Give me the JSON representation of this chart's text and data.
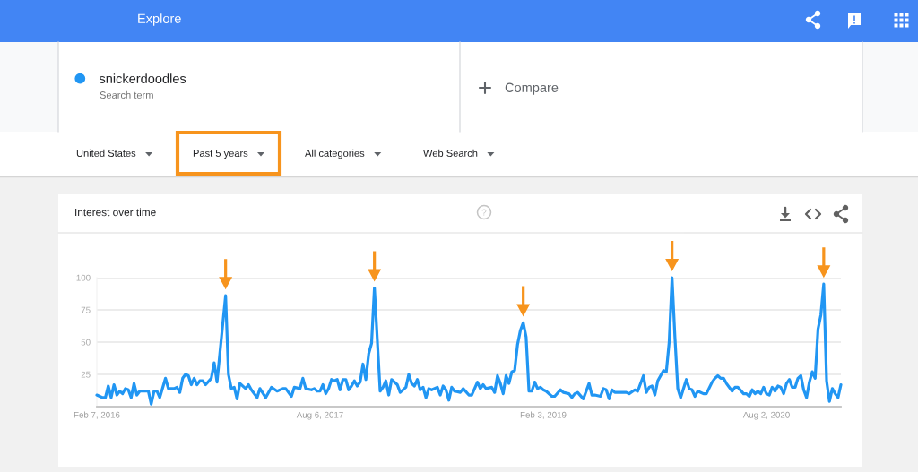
{
  "chart_data": {
    "type": "line",
    "title": "Interest over time",
    "series": [
      {
        "name": "snickerdoodles",
        "color": "#2196f3",
        "x": [
          "2016-02-07",
          "2016-02-14",
          "2016-02-21",
          "2016-02-28",
          "2016-03-06",
          "2016-03-13",
          "2016-03-20",
          "2016-03-27",
          "2016-04-03",
          "2016-04-10",
          "2016-04-17",
          "2016-04-24",
          "2016-05-01",
          "2016-05-08",
          "2016-05-15",
          "2016-05-22",
          "2016-06-12",
          "2016-06-19",
          "2016-06-26",
          "2016-07-03",
          "2016-07-10",
          "2016-07-24",
          "2016-07-31",
          "2016-08-14",
          "2016-08-21",
          "2016-08-28",
          "2016-09-04",
          "2016-09-11",
          "2016-09-18",
          "2016-09-25",
          "2016-10-02",
          "2016-10-09",
          "2016-10-16",
          "2016-10-23",
          "2016-10-30",
          "2016-11-13",
          "2016-11-20",
          "2016-11-27",
          "2016-12-11",
          "2016-12-18",
          "2016-12-25",
          "2017-01-01",
          "2017-01-08",
          "2017-01-15",
          "2017-01-22",
          "2017-02-05",
          "2017-02-12",
          "2017-02-19",
          "2017-03-05",
          "2017-03-12",
          "2017-03-26",
          "2017-04-09",
          "2017-04-23",
          "2017-05-07",
          "2017-05-14",
          "2017-05-28",
          "2017-06-04",
          "2017-06-18",
          "2017-06-25",
          "2017-07-02",
          "2017-07-16",
          "2017-07-23",
          "2017-07-30",
          "2017-08-06",
          "2017-08-13",
          "2017-08-20",
          "2017-08-27",
          "2017-09-03",
          "2017-09-10",
          "2017-09-17",
          "2017-09-24",
          "2017-10-01",
          "2017-10-08",
          "2017-10-15",
          "2017-10-22",
          "2017-10-29",
          "2017-11-05",
          "2017-11-12",
          "2017-11-19",
          "2017-11-26",
          "2017-12-03",
          "2017-12-10",
          "2017-12-17",
          "2017-12-31",
          "2018-01-07",
          "2018-01-14",
          "2018-01-21",
          "2018-01-28",
          "2018-02-11",
          "2018-02-18",
          "2018-03-04",
          "2018-03-11",
          "2018-03-18",
          "2018-03-25",
          "2018-04-01",
          "2018-04-08",
          "2018-04-15",
          "2018-04-22",
          "2018-04-29",
          "2018-05-06",
          "2018-05-20",
          "2018-05-27",
          "2018-06-03",
          "2018-06-10",
          "2018-06-17",
          "2018-06-24",
          "2018-07-01",
          "2018-07-15",
          "2018-07-22",
          "2018-08-05",
          "2018-08-12",
          "2018-08-26",
          "2018-09-02",
          "2018-09-09",
          "2018-09-16",
          "2018-09-30",
          "2018-10-07",
          "2018-10-14",
          "2018-10-21",
          "2018-10-28",
          "2018-11-04",
          "2018-11-11",
          "2018-11-18",
          "2018-11-25",
          "2018-12-02",
          "2018-12-09",
          "2018-12-16",
          "2018-12-23",
          "2018-12-30",
          "2019-01-06",
          "2019-01-13",
          "2019-01-20",
          "2019-01-27",
          "2019-02-03",
          "2019-02-10",
          "2019-02-24",
          "2019-03-03",
          "2019-03-17",
          "2019-03-24",
          "2019-04-07",
          "2019-04-14",
          "2019-04-21",
          "2019-04-28",
          "2019-05-12",
          "2019-05-26",
          "2019-06-02",
          "2019-06-09",
          "2019-06-23",
          "2019-06-30",
          "2019-07-07",
          "2019-07-14",
          "2019-07-21",
          "2019-07-28",
          "2019-08-25",
          "2019-09-01",
          "2019-09-15",
          "2019-09-22",
          "2019-10-06",
          "2019-10-13",
          "2019-10-20",
          "2019-10-27",
          "2019-11-03",
          "2019-11-10",
          "2019-11-24",
          "2019-12-01",
          "2019-12-08",
          "2019-12-15",
          "2019-12-22",
          "2019-12-29",
          "2020-01-05",
          "2020-01-19",
          "2020-01-26",
          "2020-02-02",
          "2020-02-09",
          "2020-02-16",
          "2020-03-01",
          "2020-03-08",
          "2020-03-22",
          "2020-03-29",
          "2020-04-05",
          "2020-04-12",
          "2020-04-19",
          "2020-04-26",
          "2020-05-10",
          "2020-05-17",
          "2020-05-24",
          "2020-06-07",
          "2020-06-14",
          "2020-06-21",
          "2020-06-28",
          "2020-07-05",
          "2020-07-12",
          "2020-07-19",
          "2020-07-26",
          "2020-08-02",
          "2020-08-09",
          "2020-08-16",
          "2020-08-23",
          "2020-08-30",
          "2020-09-06",
          "2020-09-13",
          "2020-09-20",
          "2020-09-27",
          "2020-10-04",
          "2020-10-11",
          "2020-10-18",
          "2020-10-25",
          "2020-11-01",
          "2020-11-08",
          "2020-11-15",
          "2020-11-22",
          "2020-11-29",
          "2020-12-06",
          "2020-12-13",
          "2020-12-20",
          "2020-12-27",
          "2021-01-03",
          "2021-01-10",
          "2021-01-17",
          "2021-01-24",
          "2021-01-31"
        ],
        "values": [
          9,
          8,
          7,
          7,
          16,
          7,
          17,
          9,
          12,
          10,
          14,
          13,
          7,
          18,
          9,
          12,
          12,
          2,
          12,
          12,
          7,
          22,
          14,
          14,
          15,
          11,
          22,
          25,
          24,
          17,
          22,
          17,
          20,
          20,
          17,
          22,
          34,
          19,
          64,
          86,
          25,
          14,
          15,
          6,
          18,
          14,
          17,
          13,
          7,
          14,
          7,
          15,
          12,
          14,
          14,
          8,
          15,
          14,
          22,
          14,
          13,
          14,
          12,
          12,
          17,
          10,
          14,
          21,
          20,
          21,
          13,
          21,
          21,
          13,
          16,
          20,
          16,
          19,
          33,
          21,
          41,
          49,
          92,
          12,
          15,
          20,
          9,
          21,
          17,
          11,
          15,
          25,
          18,
          16,
          21,
          13,
          15,
          7,
          14,
          13,
          15,
          9,
          16,
          13,
          5,
          15,
          12,
          11,
          14,
          9,
          9,
          19,
          14,
          17,
          14,
          15,
          11,
          24,
          18,
          10,
          24,
          18,
          27,
          28,
          48,
          59,
          65,
          54,
          12,
          12,
          19,
          14,
          15,
          13,
          12,
          8,
          8,
          13,
          11,
          10,
          7,
          10,
          11,
          6,
          18,
          9,
          9,
          8,
          14,
          13,
          6,
          13,
          11,
          11,
          10,
          13,
          12,
          24,
          11,
          15,
          16,
          9,
          20,
          28,
          27,
          50,
          100,
          54,
          14,
          7,
          21,
          14,
          13,
          8,
          12,
          10,
          10,
          19,
          22,
          24,
          22,
          22,
          18,
          12,
          15,
          15,
          10,
          10,
          8,
          13,
          10,
          12,
          10,
          15,
          10,
          9,
          15,
          12,
          16,
          15,
          10,
          18,
          21,
          15,
          15,
          22,
          24,
          13,
          7,
          19,
          27,
          22,
          60,
          71,
          95,
          20,
          4,
          14,
          10,
          7,
          17
        ]
      }
    ],
    "xlim": [
      "2016-02-07",
      "2021-01-31"
    ],
    "ylim": [
      0,
      100
    ],
    "xticks": [
      {
        "value": "2016-02-07",
        "label": "Feb 7, 2016"
      },
      {
        "value": "2017-08-06",
        "label": "Aug 6, 2017"
      },
      {
        "value": "2019-02-03",
        "label": "Feb 3, 2019"
      },
      {
        "value": "2020-08-02",
        "label": "Aug 2, 2020"
      }
    ],
    "yticks": [
      25,
      50,
      75,
      100
    ],
    "grid": "y",
    "legend": "top left",
    "line_style": "solid",
    "annotations": [
      "Explore",
      "Search term",
      "Compare",
      "United States",
      "Past 5 years",
      "All categories",
      "Web Search"
    ]
  }
}
